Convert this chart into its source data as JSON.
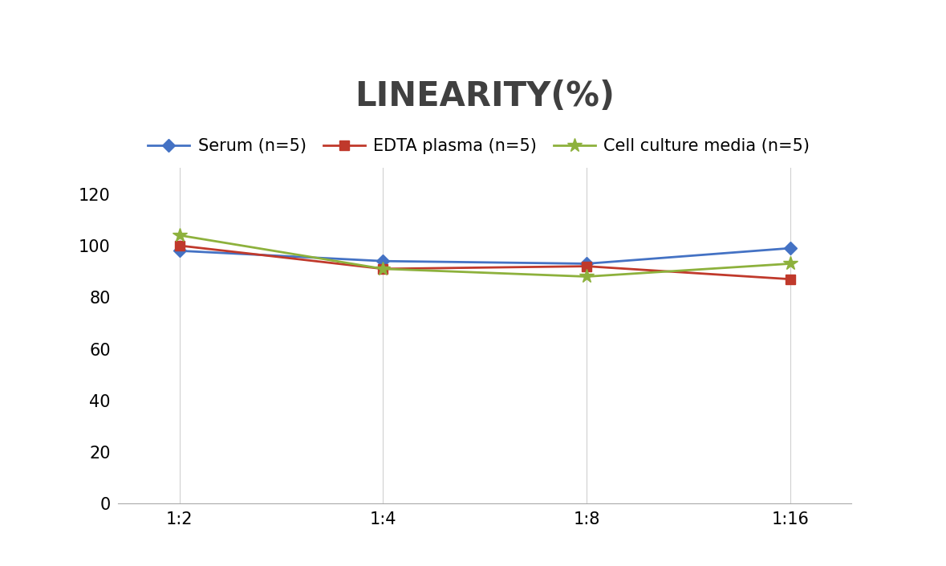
{
  "title": "LINEARITY(%)",
  "title_fontsize": 30,
  "title_fontweight": "bold",
  "title_color": "#404040",
  "x_labels": [
    "1:2",
    "1:4",
    "1:8",
    "1:16"
  ],
  "x_positions": [
    0,
    1,
    2,
    3
  ],
  "series": [
    {
      "label": "Serum (n=5)",
      "values": [
        98,
        94,
        93,
        99
      ],
      "color": "#4472C4",
      "marker": "D",
      "marker_size": 8,
      "linewidth": 2
    },
    {
      "label": "EDTA plasma (n=5)",
      "values": [
        100,
        91,
        92,
        87
      ],
      "color": "#C0392B",
      "marker": "s",
      "marker_size": 8,
      "linewidth": 2
    },
    {
      "label": "Cell culture media (n=5)",
      "values": [
        104,
        91,
        88,
        93
      ],
      "color": "#8DB13C",
      "marker": "*",
      "marker_size": 13,
      "linewidth": 2
    }
  ],
  "ylim": [
    0,
    130
  ],
  "yticks": [
    0,
    20,
    40,
    60,
    80,
    100,
    120
  ],
  "grid_color": "#D0D0D0",
  "grid_linestyle": "-",
  "grid_linewidth": 0.8,
  "background_color": "#FFFFFF",
  "legend_fontsize": 15,
  "tick_fontsize": 15
}
